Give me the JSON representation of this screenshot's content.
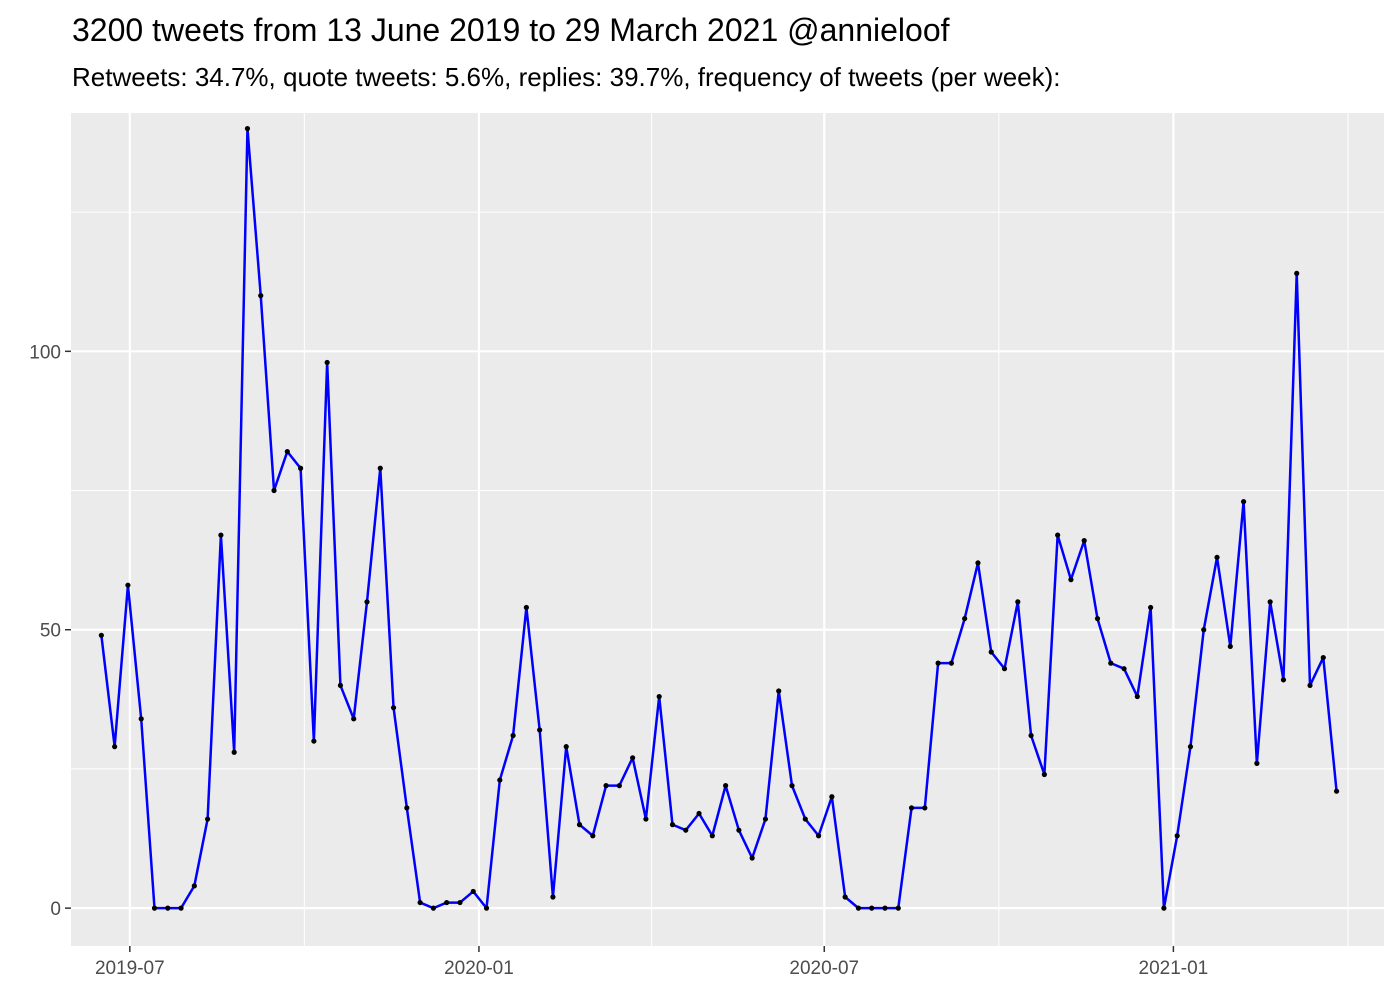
{
  "chart_data": {
    "type": "line",
    "title": "3200 tweets from 13 June 2019 to 29 March 2021 @annieloof",
    "subtitle": "Retweets: 34.7%, quote tweets: 5.6%, replies: 39.7%, frequency of tweets (per week):",
    "xlabel": "",
    "ylabel": "",
    "xlim": [
      "2019-05-31",
      "2021-04-22"
    ],
    "ylim": [
      -6.8,
      142.8
    ],
    "x_ticks": [
      {
        "label": "2019-07",
        "date": "2019-07-01"
      },
      {
        "label": "2020-01",
        "date": "2020-01-01"
      },
      {
        "label": "2020-07",
        "date": "2020-07-01"
      },
      {
        "label": "2021-01",
        "date": "2021-01-01"
      }
    ],
    "y_ticks": [
      0,
      50,
      100
    ],
    "grid": true,
    "line_color": "#0000ff",
    "point_color": "#000000",
    "panel_background": "#ebebeb",
    "series": [
      {
        "x": [
          "2019-06-16",
          "2019-06-23",
          "2019-06-30",
          "2019-07-07",
          "2019-07-14",
          "2019-07-21",
          "2019-07-28",
          "2019-08-04",
          "2019-08-11",
          "2019-08-18",
          "2019-08-25",
          "2019-09-01",
          "2019-09-08",
          "2019-09-15",
          "2019-09-22",
          "2019-09-29",
          "2019-10-06",
          "2019-10-13",
          "2019-10-20",
          "2019-10-27",
          "2019-11-03",
          "2019-11-10",
          "2019-11-17",
          "2019-11-24",
          "2019-12-01",
          "2019-12-08",
          "2019-12-15",
          "2019-12-22",
          "2019-12-29",
          "2020-01-05",
          "2020-01-12",
          "2020-01-19",
          "2020-01-26",
          "2020-02-02",
          "2020-02-09",
          "2020-02-16",
          "2020-02-23",
          "2020-03-01",
          "2020-03-08",
          "2020-03-15",
          "2020-03-22",
          "2020-03-29",
          "2020-04-05",
          "2020-04-12",
          "2020-04-19",
          "2020-04-26",
          "2020-05-03",
          "2020-05-10",
          "2020-05-17",
          "2020-05-24",
          "2020-05-31",
          "2020-06-07",
          "2020-06-14",
          "2020-06-21",
          "2020-06-28",
          "2020-07-05",
          "2020-07-12",
          "2020-07-19",
          "2020-07-26",
          "2020-08-02",
          "2020-08-09",
          "2020-08-16",
          "2020-08-23",
          "2020-08-30",
          "2020-09-06",
          "2020-09-13",
          "2020-09-20",
          "2020-09-27",
          "2020-10-04",
          "2020-10-11",
          "2020-10-18",
          "2020-10-25",
          "2020-11-01",
          "2020-11-08",
          "2020-11-15",
          "2020-11-22",
          "2020-11-29",
          "2020-12-06",
          "2020-12-13",
          "2020-12-20",
          "2020-12-27",
          "2021-01-03",
          "2021-01-10",
          "2021-01-17",
          "2021-01-24",
          "2021-01-31",
          "2021-02-07",
          "2021-02-14",
          "2021-02-21",
          "2021-02-28",
          "2021-03-07",
          "2021-03-14",
          "2021-03-21",
          "2021-03-28"
        ],
        "values": [
          49,
          29,
          58,
          34,
          0,
          0,
          0,
          4,
          16,
          67,
          28,
          140,
          110,
          75,
          82,
          79,
          30,
          98,
          40,
          34,
          55,
          79,
          36,
          18,
          1,
          0,
          1,
          1,
          3,
          0,
          23,
          31,
          54,
          32,
          2,
          29,
          15,
          13,
          22,
          22,
          27,
          16,
          38,
          15,
          14,
          17,
          13,
          22,
          14,
          9,
          16,
          39,
          22,
          16,
          13,
          20,
          2,
          0,
          0,
          0,
          0,
          18,
          18,
          44,
          44,
          52,
          62,
          46,
          43,
          55,
          31,
          24,
          67,
          59,
          66,
          52,
          44,
          43,
          38,
          54,
          0,
          13,
          29,
          50,
          63,
          47,
          73,
          26,
          55,
          41,
          114,
          40,
          45,
          21
        ]
      }
    ]
  }
}
